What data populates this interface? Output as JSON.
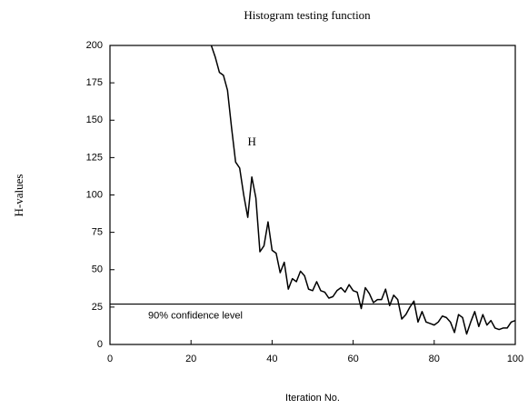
{
  "chart_data": {
    "type": "line",
    "title": "Histogram testing function",
    "x_label": "Iteration No.",
    "y_label": "H-values",
    "series": [
      {
        "name": "H",
        "color": "#000000",
        "x": [
          25,
          26,
          27,
          28,
          29,
          30,
          31,
          32,
          33,
          34,
          35,
          36,
          37,
          38,
          39,
          40,
          41,
          42,
          43,
          44,
          45,
          46,
          47,
          48,
          49,
          50,
          51,
          52,
          53,
          54,
          55,
          56,
          57,
          58,
          59,
          60,
          61,
          62,
          63,
          64,
          65,
          66,
          67,
          68,
          69,
          70,
          71,
          72,
          73,
          74,
          75,
          76,
          77,
          78,
          79,
          80,
          81,
          82,
          83,
          84,
          85,
          86,
          87,
          88,
          89,
          90,
          91,
          92,
          93,
          94,
          95,
          96,
          97,
          98,
          99,
          100
        ],
        "values": [
          200,
          192,
          182,
          180,
          170,
          145,
          122,
          118,
          100,
          85,
          112,
          98,
          62,
          66,
          82,
          63,
          61,
          48,
          55,
          37,
          44,
          42,
          49,
          46,
          37,
          36,
          42,
          36,
          35,
          31,
          32,
          36,
          38,
          35,
          40,
          36,
          35,
          24,
          38,
          34,
          28,
          30,
          30,
          37,
          26,
          33,
          30,
          17,
          20,
          25,
          29,
          15,
          22,
          15,
          14,
          13,
          15,
          19,
          18,
          15,
          8,
          20,
          18,
          7,
          15,
          22,
          12,
          20,
          13,
          16,
          11,
          10,
          11,
          11,
          15,
          16
        ]
      }
    ],
    "reference_line": {
      "value": 27,
      "label": "90% confidence level"
    },
    "xlim": [
      0,
      100
    ],
    "xticks": [
      0,
      20,
      40,
      60,
      80,
      100
    ],
    "ylim": [
      0,
      200
    ],
    "yticks": [
      0,
      25,
      50,
      75,
      100,
      125,
      150,
      175,
      200
    ]
  }
}
